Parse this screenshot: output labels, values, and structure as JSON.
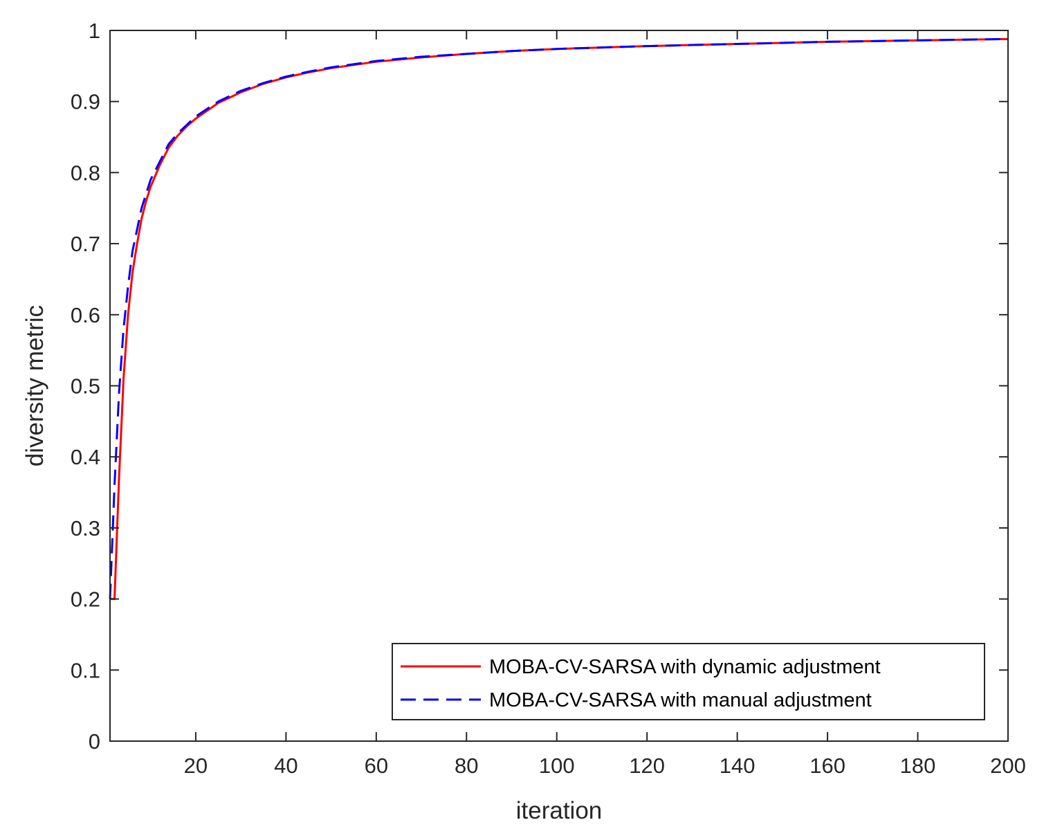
{
  "chart_data": {
    "type": "line",
    "title": "",
    "xlabel": "iteration",
    "ylabel": "diversity metric",
    "xlim": [
      1,
      200
    ],
    "ylim": [
      0,
      1
    ],
    "xticks": [
      20,
      40,
      60,
      80,
      100,
      120,
      140,
      160,
      180,
      200
    ],
    "yticks": [
      0,
      0.1,
      0.2,
      0.3,
      0.4,
      0.5,
      0.6,
      0.7,
      0.8,
      0.9,
      1
    ],
    "grid": false,
    "box": true,
    "legend_position": "bottom-right",
    "series": [
      {
        "name": "MOBA-CV-SARSA with dynamic adjustment",
        "color": "#ff0000",
        "line_style": "solid",
        "x": [
          1,
          2,
          3,
          4,
          5,
          6,
          7,
          8,
          9,
          10,
          12,
          14,
          16,
          18,
          20,
          25,
          30,
          35,
          40,
          45,
          50,
          60,
          70,
          80,
          90,
          100,
          120,
          140,
          160,
          180,
          200
        ],
        "y": [
          0.2,
          0.2,
          0.37,
          0.51,
          0.6,
          0.66,
          0.7,
          0.735,
          0.76,
          0.78,
          0.81,
          0.835,
          0.852,
          0.865,
          0.876,
          0.898,
          0.913,
          0.925,
          0.934,
          0.941,
          0.947,
          0.956,
          0.962,
          0.967,
          0.971,
          0.974,
          0.978,
          0.981,
          0.984,
          0.986,
          0.988
        ]
      },
      {
        "name": "MOBA-CV-SARSA with manual adjustment",
        "color": "#0000ff",
        "line_style": "dashed",
        "x": [
          1,
          2,
          3,
          4,
          5,
          6,
          7,
          8,
          9,
          10,
          12,
          14,
          16,
          18,
          20,
          25,
          30,
          35,
          40,
          45,
          50,
          60,
          70,
          80,
          90,
          100,
          120,
          140,
          160,
          180,
          200
        ],
        "y": [
          0.2,
          0.36,
          0.49,
          0.58,
          0.64,
          0.69,
          0.72,
          0.75,
          0.77,
          0.79,
          0.815,
          0.84,
          0.855,
          0.867,
          0.879,
          0.9,
          0.915,
          0.926,
          0.935,
          0.942,
          0.948,
          0.957,
          0.963,
          0.967,
          0.971,
          0.974,
          0.978,
          0.981,
          0.984,
          0.986,
          0.988
        ]
      }
    ]
  }
}
